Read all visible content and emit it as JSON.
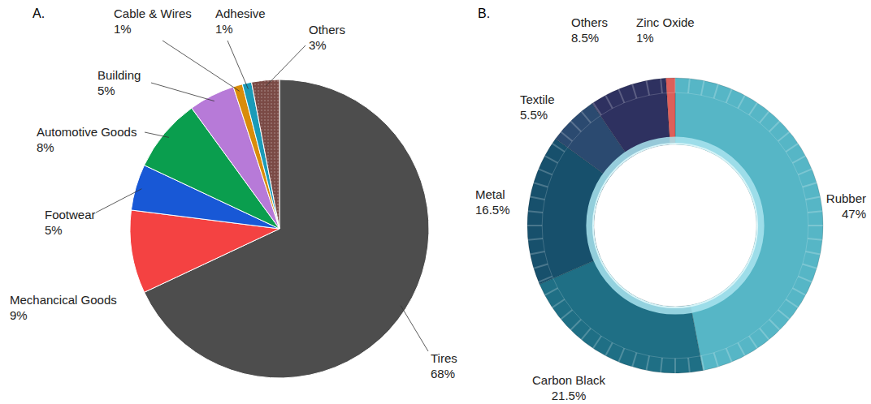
{
  "chart_data": [
    {
      "type": "pie",
      "title": "A.",
      "categories": [
        "Tires",
        "Mechancical Goods",
        "Footwear",
        "Automotive Goods",
        "Building",
        "Cable & Wires",
        "Adhesive",
        "Others"
      ],
      "values": [
        68,
        9,
        5,
        8,
        5,
        1,
        1,
        3
      ],
      "value_labels": [
        "68%",
        "9%",
        "5%",
        "8%",
        "5%",
        "1%",
        "1%",
        "3%"
      ],
      "colors": [
        "#4d4d4d",
        "#f44242",
        "#1858d6",
        "#0a9e4e",
        "#b77ad8",
        "#d98c0a",
        "#1a9bb8",
        "#7a4a45"
      ],
      "data_labels": true
    },
    {
      "type": "donut",
      "title": "B.",
      "categories": [
        "Rubber",
        "Carbon Black",
        "Metal",
        "Textile",
        "Others",
        "Zinc Oxide"
      ],
      "values": [
        47,
        21.5,
        16.5,
        5.5,
        8.5,
        1
      ],
      "value_labels": [
        "47%",
        "21.5%",
        "16.5%",
        "5.5%",
        "8.5%",
        "1%"
      ],
      "colors": [
        "#56b6c6",
        "#1f6f85",
        "#17506c",
        "#2b4a70",
        "#2e3160",
        "#dd5f5a"
      ],
      "data_labels": true
    }
  ]
}
